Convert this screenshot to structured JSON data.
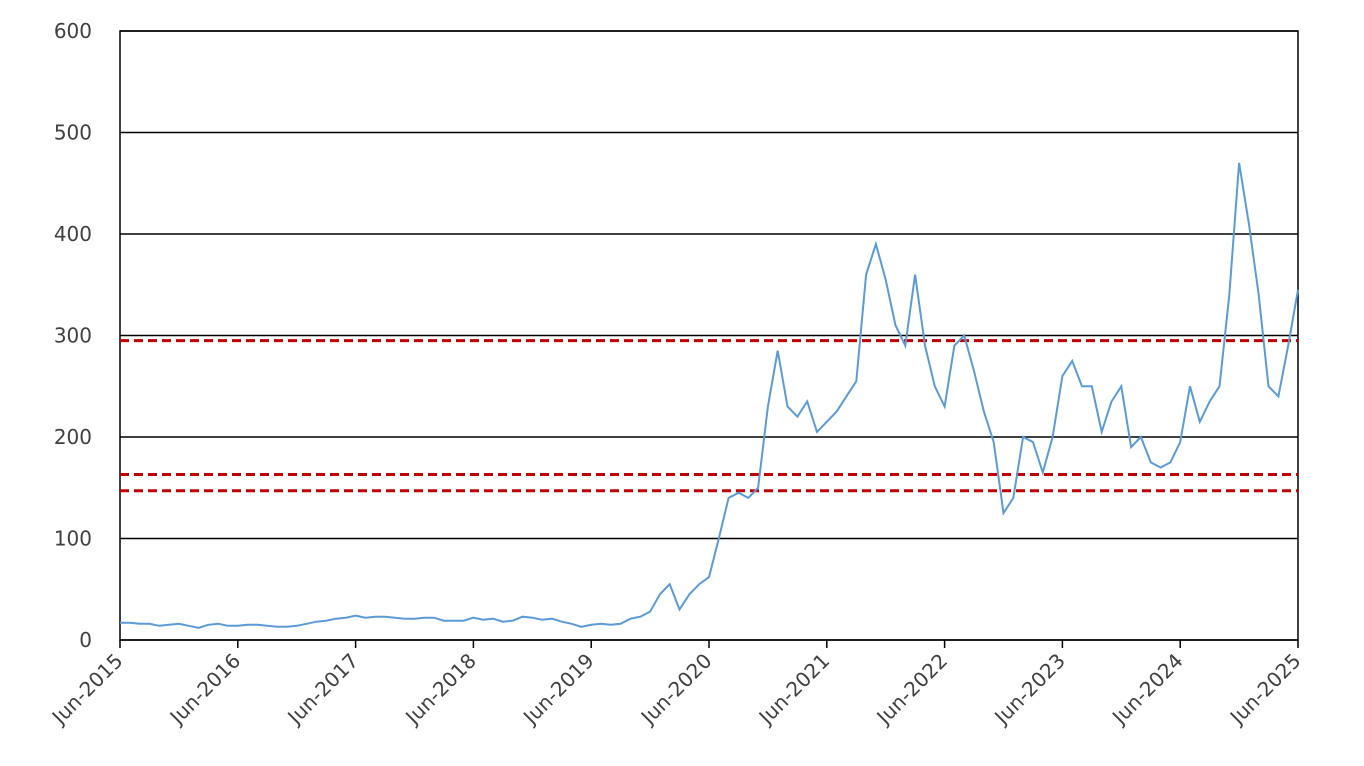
{
  "chart_data": {
    "type": "line",
    "x": [
      "Jun-2015",
      "Jul-2015",
      "Aug-2015",
      "Sep-2015",
      "Oct-2015",
      "Nov-2015",
      "Dec-2015",
      "Jan-2016",
      "Feb-2016",
      "Mar-2016",
      "Apr-2016",
      "May-2016",
      "Jun-2016",
      "Jul-2016",
      "Aug-2016",
      "Sep-2016",
      "Oct-2016",
      "Nov-2016",
      "Dec-2016",
      "Jan-2017",
      "Feb-2017",
      "Mar-2017",
      "Apr-2017",
      "May-2017",
      "Jun-2017",
      "Jul-2017",
      "Aug-2017",
      "Sep-2017",
      "Oct-2017",
      "Nov-2017",
      "Dec-2017",
      "Jan-2018",
      "Feb-2018",
      "Mar-2018",
      "Apr-2018",
      "May-2018",
      "Jun-2018",
      "Jul-2018",
      "Aug-2018",
      "Sep-2018",
      "Oct-2018",
      "Nov-2018",
      "Dec-2018",
      "Jan-2019",
      "Feb-2019",
      "Mar-2019",
      "Apr-2019",
      "May-2019",
      "Jun-2019",
      "Jul-2019",
      "Aug-2019",
      "Sep-2019",
      "Oct-2019",
      "Nov-2019",
      "Dec-2019",
      "Jan-2020",
      "Feb-2020",
      "Mar-2020",
      "Apr-2020",
      "May-2020",
      "Jun-2020",
      "Jul-2020",
      "Aug-2020",
      "Sep-2020",
      "Oct-2020",
      "Nov-2020",
      "Dec-2020",
      "Jan-2021",
      "Feb-2021",
      "Mar-2021",
      "Apr-2021",
      "May-2021",
      "Jun-2021",
      "Jul-2021",
      "Aug-2021",
      "Sep-2021",
      "Oct-2021",
      "Nov-2021",
      "Dec-2021",
      "Jan-2022",
      "Feb-2022",
      "Mar-2022",
      "Apr-2022",
      "May-2022",
      "Jun-2022",
      "Jul-2022",
      "Aug-2022",
      "Sep-2022",
      "Oct-2022",
      "Nov-2022",
      "Dec-2022",
      "Jan-2023",
      "Feb-2023",
      "Mar-2023",
      "Apr-2023",
      "May-2023",
      "Jun-2023",
      "Jul-2023",
      "Aug-2023",
      "Sep-2023",
      "Oct-2023",
      "Nov-2023",
      "Dec-2023",
      "Jan-2024",
      "Feb-2024",
      "Mar-2024",
      "Apr-2024",
      "May-2024",
      "Jun-2024",
      "Jul-2024",
      "Aug-2024",
      "Sep-2024",
      "Oct-2024",
      "Nov-2024",
      "Dec-2024",
      "Jan-2025",
      "Feb-2025",
      "Mar-2025",
      "Apr-2025",
      "May-2025",
      "Jun-2025"
    ],
    "series": [
      {
        "color": "#5b9bd5",
        "values": [
          17,
          17,
          16,
          16,
          14,
          15,
          16,
          14,
          12,
          15,
          16,
          14,
          14,
          15,
          15,
          14,
          13,
          13,
          14,
          16,
          18,
          19,
          21,
          22,
          24,
          22,
          23,
          23,
          22,
          21,
          21,
          22,
          22,
          19,
          19,
          19,
          22,
          20,
          21,
          18,
          19,
          23,
          22,
          20,
          21,
          18,
          16,
          13,
          15,
          16,
          15,
          16,
          21,
          23,
          28,
          45,
          55,
          30,
          45,
          55,
          62,
          100,
          140,
          145,
          140,
          150,
          230,
          285,
          230,
          220,
          235,
          205,
          215,
          225,
          240,
          255,
          360,
          390,
          355,
          310,
          290,
          360,
          290,
          250,
          230,
          290,
          300,
          265,
          225,
          195,
          125,
          140,
          200,
          195,
          165,
          200,
          260,
          275,
          250,
          250,
          205,
          235,
          250,
          190,
          200,
          175,
          170,
          175,
          195,
          250,
          215,
          235,
          250,
          340,
          470,
          410,
          340,
          250,
          240,
          290,
          345
        ]
      }
    ],
    "reference_lines": [
      295,
      163,
      147
    ],
    "reference_color": "#c00000",
    "ylim": [
      0,
      600
    ],
    "yticks": [
      0,
      100,
      200,
      300,
      400,
      500,
      600
    ],
    "grid": true,
    "xticks": [
      "Jun-2015",
      "Jun-2016",
      "Jun-2017",
      "Jun-2018",
      "Jun-2019",
      "Jun-2020",
      "Jun-2021",
      "Jun-2022",
      "Jun-2023",
      "Jun-2024",
      "Jun-2025"
    ]
  }
}
